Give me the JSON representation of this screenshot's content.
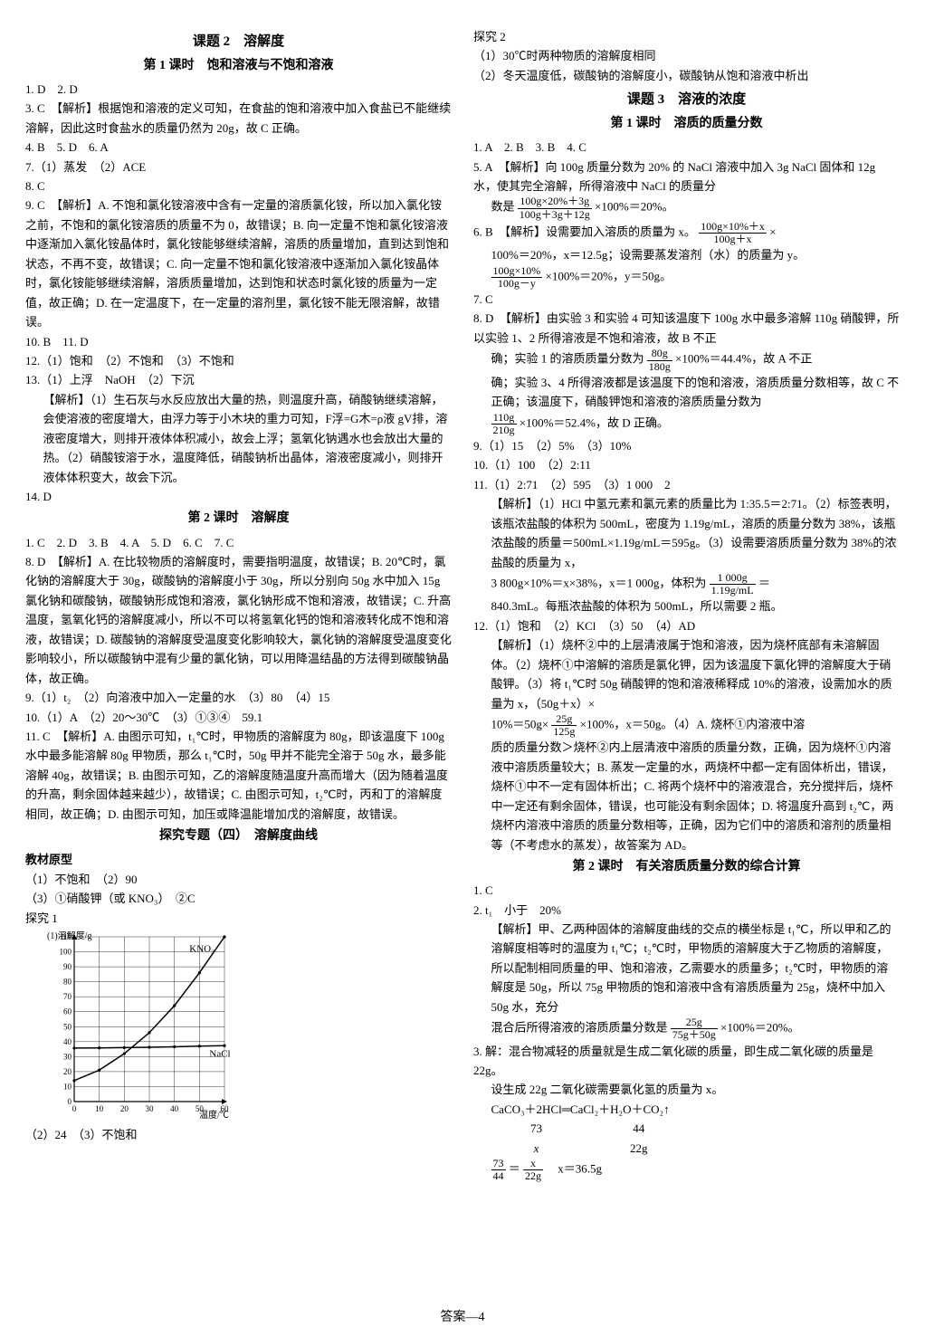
{
  "footer": "答案—4",
  "left": {
    "h_keti2": "课题 2　溶解度",
    "h_ke1": "第 1 课时　饱和溶液与不饱和溶液",
    "p1": "1. D　2. D",
    "p3": "3. C　【解析】根据饱和溶液的定义可知，在食盐的饱和溶液中加入食盐已不能继续溶解，因此这时食盐水的质量仍然为 20g，故 C 正确。",
    "p4": "4. B　5. D　6. A",
    "p7": "7.（1）蒸发　（2）ACE",
    "p8": "8. C",
    "p9": "9. C　【解析】A. 不饱和氯化铵溶液中含有一定量的溶质氯化铵，所以加入氯化铵之前，不饱和的氯化铵溶质的质量不为 0，故错误；B. 向一定量不饱和氯化铵溶液中逐渐加入氯化铵晶体时，氯化铵能够继续溶解，溶质的质量增加，直到达到饱和状态，不再不变，故错误；C. 向一定量不饱和氯化铵溶液中逐渐加入氯化铵晶体时，氯化铵能够继续溶解，溶质质量增加，达到饱和状态时氯化铵的质量为一定值，故正确；D. 在一定温度下，在一定量的溶剂里，氯化铵不能无限溶解，故错误。",
    "p10": "10. B　11. D",
    "p12": "12.（1）饱和　（2）不饱和　（3）不饱和",
    "p13": "13.（1）上浮　NaOH　（2）下沉",
    "p13x": "【解析】（1）生石灰与水反应放出大量的热，则温度升高，硝酸钠继续溶解，会使溶液的密度增大，由浮力等于小木块的重力可知，F浮=G木=ρ液 gV排，溶液密度增大，则排开液体体积减小，故会上浮；氢氧化钠遇水也会放出大量的热。（2）硝酸铵溶于水，温度降低，硝酸钠析出晶体，溶液密度减小，则排开液体体积变大，故会下沉。",
    "p14": "14. D",
    "h_ke2": "第 2 课时　溶解度",
    "q1": "1. C　2. D　3. B　4. A　5. D　6. C　7. C",
    "q8": "8. D　【解析】A. 在比较物质的溶解度时，需要指明温度，故错误；B. 20℃时，氯化钠的溶解度大于 30g，碳酸钠的溶解度小于 30g，所以分别向 50g 水中加入 15g 氯化钠和碳酸钠，碳酸钠形成饱和溶液，氯化钠形成不饱和溶液，故错误；C. 升高温度，氢氧化钙的溶解度减小，所以不可以将氢氧化钙的饱和溶液转化成不饱和溶液，故错误；D. 碳酸钠的溶解度受温度变化影响较大，氯化钠的溶解度受温度变化影响较小，所以碳酸钠中混有少量的氯化钠，可以用降温结晶的方法得到碳酸钠晶体，故正确。",
    "q9": "9.（1）t₂　（2）向溶液中加入一定量的水　（3）80　（4）15",
    "q10": "10.（1）A　（2）20～30℃　（3）①③④　59.1",
    "q11": "11. C　【解析】A. 由图示可知，t₁℃时，甲物质的溶解度为 80g，即该温度下 100g 水中最多能溶解 80g 甲物质，那么 t₁℃时，50g 甲并不能完全溶于 50g 水，最多能溶解 40g，故错误；B. 由图示可知，乙的溶解度随温度升高而增大（因为随着温度的升高，剩余固体越来越少），故错误；C. 由图示可知，t₂℃时，丙和丁的溶解度相同，故正确；D. 由图示可知，加压或降温能增加戊的溶解度，故错误。",
    "h_tanjiu": "探究专题（四）　溶解度曲线",
    "jc": "教材原型",
    "jc1": "（1）不饱和　（2）90",
    "jc3": "（3）①硝酸钾（或 KNO₃）　②C",
    "tj1": "探究 1",
    "tj1_chart_label_y": "(1)溶解度/g",
    "tj1_chart_label_kno3": "KNO₃",
    "tj1_chart_label_nacl": "NaCl",
    "tj1_chart_x": "温度/℃",
    "chart_y_ticks": [
      0,
      10,
      20,
      30,
      40,
      50,
      60,
      70,
      80,
      90,
      100,
      110
    ],
    "chart_x_ticks": [
      0,
      10,
      20,
      30,
      40,
      50,
      60
    ],
    "kno3_pts": [
      [
        0,
        14
      ],
      [
        10,
        21
      ],
      [
        20,
        32
      ],
      [
        30,
        46
      ],
      [
        40,
        64
      ],
      [
        50,
        86
      ],
      [
        60,
        110
      ]
    ],
    "nacl_pts": [
      [
        0,
        35.7
      ],
      [
        10,
        35.8
      ],
      [
        20,
        36
      ],
      [
        30,
        36.3
      ],
      [
        40,
        36.6
      ],
      [
        50,
        37
      ],
      [
        60,
        37.3
      ]
    ],
    "tj1_2": "（2）24　（3）不饱和"
  },
  "right": {
    "tj2": "探究 2",
    "tj2_1": "（1）30℃时两种物质的溶解度相同",
    "tj2_2": "（2）冬天温度低，碳酸钠的溶解度小，碳酸钠从饱和溶液中析出",
    "h_keti3": "课题 3　溶液的浓度",
    "h_ke1": "第 1 课时　溶质的质量分数",
    "r1": "1. A　2. B　3. B　4. C",
    "r5a": "5. A　【解析】向 100g 质量分数为 20% 的 NaCl 溶液中加入 3g NaCl 固体和 12g 水，使其完全溶解，所得溶液中 NaCl 的质量分",
    "r5b_pre": "数是",
    "r5b_num": "100g×20%＋3g",
    "r5b_den": "100g＋3g＋12g",
    "r5b_post": "×100%＝20%。",
    "r6a": "6. B　【解析】设需要加入溶质的质量为 x。",
    "r6a_num": "100g×10%＋x",
    "r6a_den": "100g＋x",
    "r6a_post": "×",
    "r6b": "100%＝20%，x＝12.5g；设需要蒸发溶剂（水）的质量为 y。",
    "r6c_num": "100g×10%",
    "r6c_den": "100g－y",
    "r6c_post": "×100%＝20%，y＝50g。",
    "r7": "7. C",
    "r8a": "8. D　【解析】由实验 3 和实验 4 可知该温度下 100g 水中最多溶解 110g 硝酸钾，所以实验 1、2 所得溶液是不饱和溶液，故 B 不正",
    "r8b_pre": "确；实验 1 的溶质质量分数为",
    "r8b_num": "80g",
    "r8b_den": "180g",
    "r8b_post": "×100%＝44.4%，故 A 不正",
    "r8c": "确；实验 3、4 所得溶液都是该温度下的饱和溶液，溶质质量分数相等，故 C 不正确；该温度下，硝酸钾饱和溶液的溶质质量分数为",
    "r8d_num": "110g",
    "r8d_den": "210g",
    "r8d_post": "×100%＝52.4%，故 D 正确。",
    "r9": "9.（1）15　（2）5%　（3）10%",
    "r10": "10.（1）100　（2）2:11",
    "r11": "11.（1）2:71　（2）595　（3）1 000　2",
    "r11x_a": "【解析】（1）HCl 中氢元素和氯元素的质量比为 1:35.5＝2:71。（2）标签表明，该瓶浓盐酸的体积为 500mL，密度为 1.19g/mL，溶质的质量分数为 38%，该瓶浓盐酸的质量＝500mL×1.19g/mL＝595g。（3）设需要溶质质量分数为 38%的浓盐酸的质量为 x，",
    "r11x_b_pre": "3 800g×10%＝x×38%，x＝1 000g，体积为",
    "r11x_b_num": "1 000g",
    "r11x_b_den": "1.19g/mL",
    "r11x_b_post": "＝",
    "r11x_c": "840.3mL。每瓶浓盐酸的体积为 500mL，所以需要 2 瓶。",
    "r12": "12.（1）饱和　（2）KCl　（3）50　（4）AD",
    "r12x_a": "【解析】（1）烧杯②中的上层清液属于饱和溶液，因为烧杯底部有未溶解固体。（2）烧杯①中溶解的溶质是氯化钾，因为该温度下氯化钾的溶解度大于硝酸钾。（3）将 t₁℃时 50g 硝酸钾的饱和溶液稀释成 10%的溶液，设需加水的质量为 x，（50g＋x）×",
    "r12x_b_pre": "10%＝50g×",
    "r12x_b_num": "25g",
    "r12x_b_den": "125g",
    "r12x_b_post": "×100%，x＝50g。（4）A. 烧杯①内溶液中溶",
    "r12x_c": "质的质量分数＞烧杯②内上层清液中溶质的质量分数，正确，因为烧杯①内溶液中溶质质量较大；B. 蒸发一定量的水，两烧杯中都一定有固体析出，错误，烧杯①中不一定有固体析出；C. 将两个烧杯中的溶液混合，充分搅拌后，烧杯中一定还有剩余固体，错误，也可能没有剩余固体；D. 将温度升高到 t₂℃，两烧杯内溶液中溶质的质量分数相等，正确，因为它们中的溶质和溶剂的质量相等（不考虑水的蒸发），故答案为 AD。",
    "h_ke2": "第 2 课时　有关溶质质量分数的综合计算",
    "s1": "1. C",
    "s2": "2. t₁　小于　20%",
    "s2x_a": "【解析】甲、乙两种固体的溶解度曲线的交点的横坐标是 t₁℃，所以甲和乙的溶解度相等时的温度为 t₁℃；t₂℃时，甲物质的溶解度大于乙物质的溶解度，所以配制相同质量的甲、饱和溶液，乙需要水的质量多；t₂℃时，甲物质的溶解度是 50g，所以 75g 甲物质的饱和溶液中含有溶质质量为 25g，烧杯中加入 50g 水，充分",
    "s2x_b_pre": "混合后所得溶液的溶质质量分数是",
    "s2x_b_num": "25g",
    "s2x_b_den": "75g＋50g",
    "s2x_b_post": "×100%＝20%。",
    "s3a": "3. 解：混合物减轻的质量就是生成二氧化碳的质量，即生成二氧化碳的质量是 22g。",
    "s3b": "设生成 22g 二氧化碳需要氯化氢的质量为 x。",
    "s3c": "CaCO₃＋2HCl═CaCl₂＋H₂O＋CO₂↑",
    "s3d1_a": "73",
    "s3d1_b": "44",
    "s3d2_a": "x",
    "s3d2_b": "22g",
    "s3e_num": "73",
    "s3e_den": "44",
    "s3e_eq": "＝",
    "s3e_num2": "x",
    "s3e_den2": "22g",
    "s3e_post": "　x＝36.5g"
  }
}
